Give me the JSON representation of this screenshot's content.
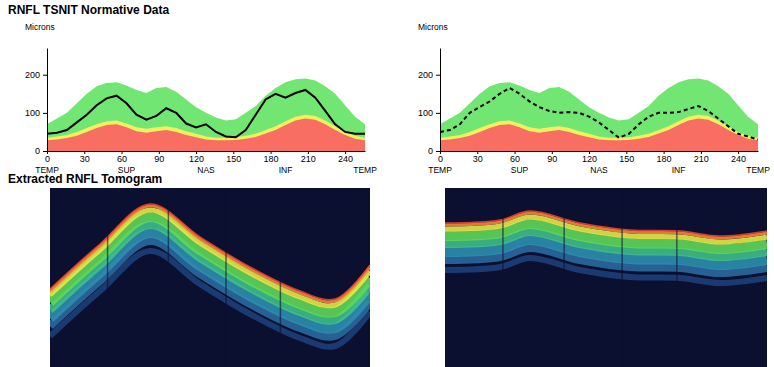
{
  "chart_data": [
    {
      "type": "line",
      "title": "RNFL TSNIT Normative Data",
      "ylabel": "Microns",
      "x": [
        0,
        8,
        16,
        24,
        32,
        40,
        48,
        56,
        64,
        72,
        80,
        88,
        96,
        104,
        112,
        120,
        128,
        136,
        144,
        152,
        160,
        168,
        176,
        184,
        192,
        200,
        208,
        216,
        224,
        232,
        240,
        248,
        256
      ],
      "xlim": [
        0,
        256
      ],
      "xticks": [
        0,
        30,
        60,
        90,
        120,
        150,
        180,
        210,
        240
      ],
      "ylim": [
        0,
        270
      ],
      "yticks": [
        0,
        100,
        200
      ],
      "annotations": [
        {
          "x": 0,
          "text": "TEMP"
        },
        {
          "x": 64,
          "text": "SUP"
        },
        {
          "x": 128,
          "text": "NAS"
        },
        {
          "x": 192,
          "text": "INF"
        },
        {
          "x": 256,
          "text": "TEMP"
        }
      ],
      "series": [
        {
          "type": "area",
          "color": "#72e672",
          "values": [
            70,
            85,
            100,
            125,
            150,
            170,
            178,
            180,
            172,
            160,
            152,
            165,
            168,
            155,
            135,
            115,
            100,
            88,
            80,
            83,
            100,
            118,
            145,
            165,
            180,
            188,
            190,
            185,
            170,
            150,
            120,
            90,
            70
          ]
        },
        {
          "type": "area",
          "color": "#f2f060",
          "values": [
            35,
            38,
            42,
            50,
            60,
            70,
            78,
            80,
            72,
            62,
            58,
            62,
            65,
            60,
            52,
            45,
            38,
            35,
            35,
            36,
            40,
            45,
            55,
            65,
            78,
            90,
            95,
            92,
            80,
            65,
            50,
            40,
            35
          ]
        },
        {
          "type": "area",
          "color": "#f86e62",
          "values": [
            28,
            30,
            34,
            40,
            50,
            60,
            68,
            70,
            62,
            52,
            48,
            52,
            55,
            50,
            42,
            36,
            30,
            28,
            28,
            29,
            32,
            37,
            46,
            55,
            68,
            80,
            85,
            82,
            70,
            55,
            42,
            32,
            28
          ]
        },
        {
          "type": "line",
          "color": "#000000",
          "line_style": "solid",
          "values": [
            45,
            48,
            55,
            75,
            95,
            120,
            138,
            145,
            125,
            95,
            82,
            92,
            112,
            100,
            72,
            62,
            70,
            50,
            38,
            36,
            55,
            95,
            135,
            150,
            140,
            152,
            160,
            140,
            105,
            70,
            50,
            45,
            45
          ]
        }
      ]
    },
    {
      "type": "line",
      "ylabel": "Microns",
      "x": [
        0,
        8,
        16,
        24,
        32,
        40,
        48,
        56,
        64,
        72,
        80,
        88,
        96,
        104,
        112,
        120,
        128,
        136,
        144,
        152,
        160,
        168,
        176,
        184,
        192,
        200,
        208,
        216,
        224,
        232,
        240,
        248,
        256
      ],
      "xlim": [
        0,
        256
      ],
      "xticks": [
        0,
        30,
        60,
        90,
        120,
        150,
        180,
        210,
        240
      ],
      "ylim": [
        0,
        270
      ],
      "yticks": [
        0,
        100,
        200
      ],
      "annotations": [
        {
          "x": 0,
          "text": "TEMP"
        },
        {
          "x": 64,
          "text": "SUP"
        },
        {
          "x": 128,
          "text": "NAS"
        },
        {
          "x": 192,
          "text": "INF"
        },
        {
          "x": 256,
          "text": "TEMP"
        }
      ],
      "series": [
        {
          "type": "area",
          "color": "#72e672",
          "values": [
            70,
            85,
            100,
            125,
            150,
            170,
            178,
            180,
            172,
            160,
            152,
            165,
            168,
            155,
            135,
            115,
            100,
            88,
            80,
            83,
            100,
            118,
            145,
            165,
            180,
            188,
            190,
            185,
            170,
            150,
            120,
            90,
            70
          ]
        },
        {
          "type": "area",
          "color": "#f2f060",
          "values": [
            35,
            38,
            42,
            50,
            60,
            70,
            78,
            80,
            72,
            62,
            58,
            62,
            65,
            60,
            52,
            45,
            38,
            35,
            35,
            36,
            40,
            45,
            55,
            65,
            78,
            90,
            95,
            92,
            80,
            65,
            50,
            40,
            35
          ]
        },
        {
          "type": "area",
          "color": "#f86e62",
          "values": [
            28,
            30,
            34,
            40,
            50,
            60,
            68,
            70,
            62,
            52,
            48,
            52,
            55,
            50,
            42,
            36,
            30,
            28,
            28,
            29,
            32,
            37,
            46,
            55,
            68,
            80,
            85,
            82,
            70,
            55,
            42,
            32,
            28
          ]
        },
        {
          "type": "line",
          "color": "#000000",
          "line_style": "dashed",
          "values": [
            50,
            55,
            70,
            100,
            115,
            130,
            150,
            165,
            150,
            130,
            115,
            105,
            100,
            102,
            100,
            90,
            75,
            55,
            35,
            45,
            70,
            90,
            100,
            100,
            102,
            110,
            118,
            105,
            85,
            65,
            45,
            38,
            30
          ]
        }
      ]
    }
  ],
  "tomogram": {
    "title": "Extracted RNFL Tomogram"
  }
}
